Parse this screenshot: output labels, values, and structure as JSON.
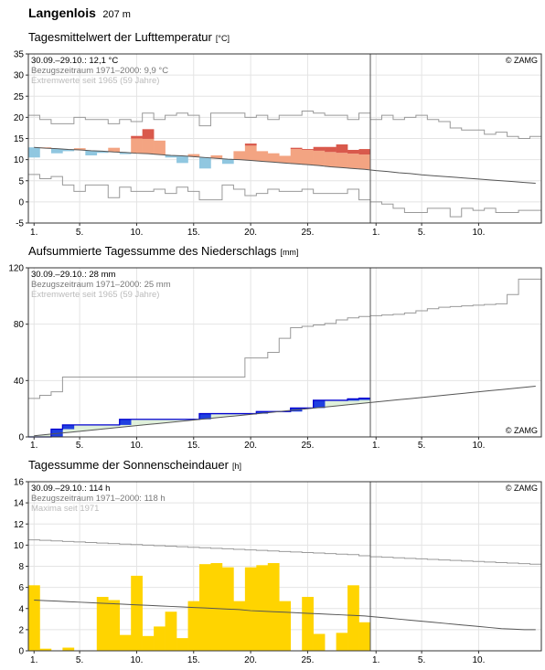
{
  "header": {
    "station": "Langenlois",
    "altitude": "207 m"
  },
  "x_ticks": [
    "1.",
    "5.",
    "10.",
    "15.",
    "20.",
    "25.",
    "1.",
    "5.",
    "10."
  ],
  "chart_data": [
    {
      "type": "area",
      "title": "Tagesmittelwert der Lufttemperatur",
      "unit": "[°C]",
      "ylim": [
        -5,
        35
      ],
      "y_ticks": [
        -5,
        0,
        5,
        10,
        15,
        20,
        25,
        30,
        35
      ],
      "grid": true,
      "legend": "top-left",
      "info": [
        "30.09.–29.10.: 12,1 °C",
        "Bezugszeitraum 1971–2000: 9,9 °C",
        "Extremwerte seit 1965 (59 Jahre)"
      ],
      "copyright": "© ZAMG",
      "x_days": 30,
      "x_total": 45,
      "values": [
        10.5,
        12.9,
        11.5,
        12.0,
        12.7,
        11.0,
        11.6,
        12.8,
        11.3,
        15.6,
        17.2,
        14.5,
        10.5,
        9.2,
        11.3,
        7.9,
        11.0,
        9.0,
        12.0,
        13.8,
        12.0,
        11.5,
        10.9,
        12.8,
        12.5,
        13.0,
        13.0,
        13.6,
        12.3,
        12.5
      ],
      "normal": [
        12.9,
        12.7,
        12.6,
        12.4,
        12.3,
        12.1,
        12.0,
        11.8,
        11.7,
        11.5,
        11.4,
        11.2,
        11.0,
        10.9,
        10.7,
        10.5,
        10.3,
        10.1,
        10.0,
        9.8,
        9.6,
        9.4,
        9.2,
        9.0,
        8.8,
        8.6,
        8.3,
        8.1,
        7.9,
        7.7,
        7.4,
        7.2,
        6.9,
        6.7,
        6.4,
        6.2,
        6.0,
        5.8,
        5.6,
        5.4,
        5.2,
        5.0,
        4.8,
        4.6,
        4.4
      ],
      "max_extreme": [
        20.5,
        19.5,
        18.5,
        18.5,
        20.0,
        19.5,
        19.5,
        18.5,
        19.5,
        19.0,
        21.0,
        19.5,
        20.5,
        21.0,
        20.5,
        18.0,
        21.0,
        21.0,
        21.0,
        20.0,
        20.5,
        19.5,
        20.5,
        20.5,
        21.5,
        21.0,
        20.5,
        20.5,
        19.5,
        21.0,
        19.5,
        20.5,
        19.5,
        20.0,
        20.5,
        19.5,
        19.0,
        17.5,
        17.0,
        17.0,
        16.0,
        16.5,
        15.5,
        15.0,
        15.5
      ],
      "min_extreme": [
        6.5,
        5.5,
        6.0,
        4.0,
        2.5,
        4.0,
        4.0,
        1.0,
        3.5,
        2.5,
        2.5,
        3.0,
        2.0,
        3.5,
        2.5,
        0.5,
        0.5,
        4.0,
        3.0,
        1.5,
        2.0,
        3.0,
        2.5,
        2.5,
        3.0,
        2.0,
        2.0,
        2.0,
        3.0,
        0.5,
        0.0,
        -0.5,
        -1.5,
        -2.5,
        -2.5,
        -1.5,
        -1.5,
        -3.5,
        -1.5,
        -2.0,
        -1.5,
        -2.5,
        -2.5,
        -2.0,
        -2.0
      ],
      "colors": {
        "above_strong": "#d9594c",
        "above": "#f3a482",
        "below": "#90c7e0",
        "normal_line": "#555555",
        "extreme_line": "#999999"
      }
    },
    {
      "type": "area",
      "title": "Aufsummierte Tagessumme des Niederschlags",
      "unit": "[mm]",
      "ylim": [
        0,
        120
      ],
      "y_ticks": [
        0,
        40,
        80,
        120
      ],
      "grid": true,
      "legend": "top-left",
      "info": [
        "30.09.–29.10.: 28 mm",
        "Bezugszeitraum 1971–2000: 25 mm",
        "Extremwerte seit 1965 (59 Jahre)"
      ],
      "copyright": "© ZAMG",
      "x_days": 30,
      "x_total": 45,
      "values": [
        0,
        0,
        5.5,
        8.5,
        8.5,
        8.5,
        8.5,
        8.5,
        12.5,
        12.5,
        12.5,
        12.5,
        12.5,
        12.5,
        12.5,
        16.5,
        16.5,
        16.5,
        16.5,
        16.5,
        18,
        18,
        18,
        20.5,
        20.5,
        26,
        26,
        26,
        27,
        27.5
      ],
      "normal": [
        0.8,
        1.6,
        2.4,
        3.2,
        4.0,
        4.8,
        5.6,
        6.4,
        7.2,
        8.0,
        8.8,
        9.6,
        10.4,
        11.2,
        12.0,
        12.8,
        13.6,
        14.4,
        15.2,
        16.0,
        16.8,
        17.6,
        18.4,
        19.2,
        20.0,
        20.8,
        21.6,
        22.4,
        23.2,
        24.0,
        24.8,
        25.6,
        26.4,
        27.2,
        28.0,
        28.8,
        29.6,
        30.4,
        31.2,
        32.0,
        32.8,
        33.6,
        34.4,
        35.2,
        36.0
      ],
      "max_extreme": [
        27.3,
        29.5,
        32.0,
        42.5,
        42.5,
        42.5,
        42.5,
        42.5,
        42.5,
        42.5,
        42.5,
        42.5,
        42.5,
        42.5,
        42.5,
        42.5,
        42.5,
        42.5,
        42.5,
        56.0,
        56.0,
        60.0,
        70.0,
        77.5,
        78.5,
        79.5,
        80.5,
        83.0,
        84.5,
        85.5,
        86.0,
        86.5,
        87.0,
        88.0,
        89.5,
        91.0,
        92.0,
        92.5,
        93.0,
        93.5,
        94.0,
        94.5,
        101.0,
        112.0,
        112.0
      ],
      "colors": {
        "line": "#0000d0",
        "surplus": "#2040e0",
        "deficit_fill": "#dff0da",
        "normal_line": "#555555",
        "extreme_line": "#999999",
        "early_fill": "#f5f0c8"
      }
    },
    {
      "type": "bar",
      "title": "Tagessumme der Sonnenscheindauer",
      "unit": "[h]",
      "ylim": [
        0,
        16
      ],
      "y_ticks": [
        0,
        2,
        4,
        6,
        8,
        10,
        12,
        14,
        16
      ],
      "grid": true,
      "legend": "top-left",
      "info": [
        "30.09.–29.10.: 114 h",
        "Bezugszeitraum 1971–2000: 118 h",
        "Maxima seit 1971"
      ],
      "copyright": "© ZAMG",
      "x_days": 30,
      "x_total": 45,
      "values": [
        6.2,
        0.2,
        0.0,
        0.3,
        0.0,
        0.0,
        5.1,
        4.8,
        1.5,
        7.1,
        1.4,
        2.3,
        3.7,
        1.2,
        4.7,
        8.2,
        8.3,
        7.9,
        4.7,
        7.9,
        8.1,
        8.3,
        4.7,
        0.0,
        5.1,
        1.6,
        0.0,
        1.7,
        6.2,
        2.7
      ],
      "normal": [
        4.8,
        4.75,
        4.7,
        4.65,
        4.6,
        4.55,
        4.5,
        4.45,
        4.4,
        4.35,
        4.3,
        4.25,
        4.2,
        4.15,
        4.1,
        4.05,
        4.0,
        3.95,
        3.9,
        3.8,
        3.75,
        3.7,
        3.65,
        3.6,
        3.55,
        3.5,
        3.45,
        3.4,
        3.35,
        3.3,
        3.2,
        3.1,
        3.0,
        2.9,
        2.8,
        2.7,
        2.6,
        2.5,
        2.4,
        2.3,
        2.2,
        2.1,
        2.05,
        2.0,
        2.0
      ],
      "max_extreme": [
        10.5,
        10.45,
        10.4,
        10.35,
        10.3,
        10.25,
        10.2,
        10.15,
        10.1,
        10.05,
        10.0,
        9.95,
        9.9,
        9.85,
        9.8,
        9.75,
        9.7,
        9.65,
        9.6,
        9.55,
        9.5,
        9.45,
        9.4,
        9.35,
        9.3,
        9.25,
        9.2,
        9.15,
        9.1,
        9.0,
        8.9,
        8.85,
        8.8,
        8.75,
        8.7,
        8.65,
        8.6,
        8.55,
        8.5,
        8.45,
        8.4,
        8.35,
        8.3,
        8.25,
        8.2
      ],
      "colors": {
        "bar": "#ffd400",
        "normal_line": "#555555",
        "extreme_line": "#999999"
      }
    }
  ]
}
